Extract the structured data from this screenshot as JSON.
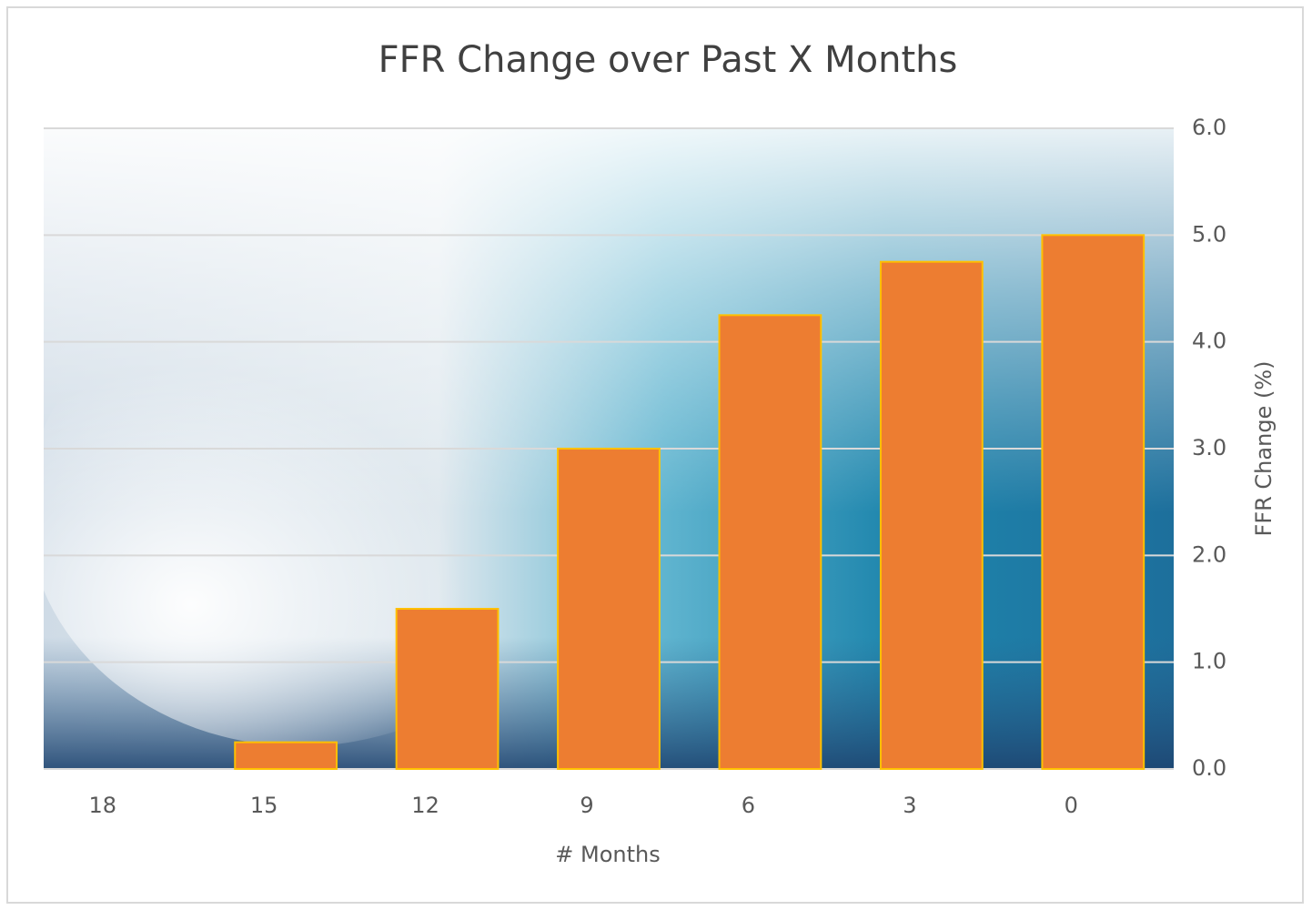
{
  "chart_data": {
    "type": "bar",
    "title": "FFR Change over Past X Months",
    "x_label": "# Months",
    "y_label": "FFR Change (%)",
    "categories": [
      "18",
      "15",
      "12",
      "9",
      "6",
      "3",
      "0"
    ],
    "values": [
      0,
      0.25,
      1.5,
      3.0,
      4.25,
      4.75,
      5.0
    ],
    "color": "#ed7d31",
    "edge_color": "#ffc000",
    "ylim": [
      0,
      6
    ],
    "yticks": [
      {
        "value": 0,
        "label": "0.0"
      },
      {
        "value": 1,
        "label": "1.0"
      },
      {
        "value": 2,
        "label": "2.0"
      },
      {
        "value": 3,
        "label": "3.0"
      },
      {
        "value": 4,
        "label": "4.0"
      },
      {
        "value": 5,
        "label": "5.0"
      },
      {
        "value": 6,
        "label": "6.0"
      }
    ],
    "y_axis_side": "right",
    "grid": true
  }
}
